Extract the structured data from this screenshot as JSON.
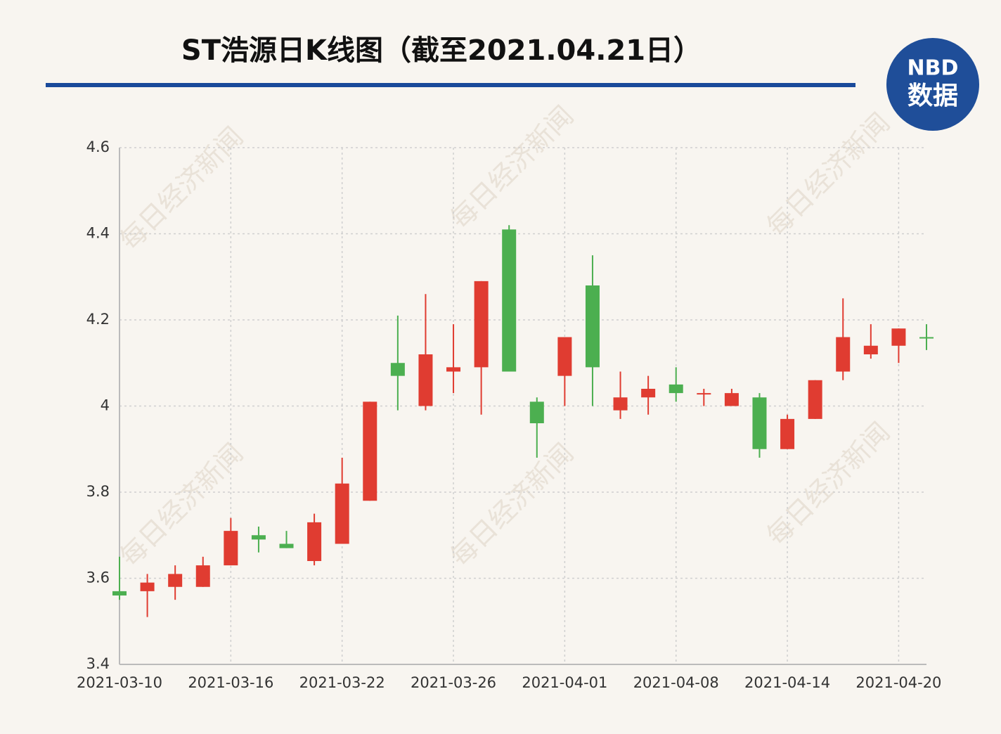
{
  "chart_data": {
    "type": "candlestick",
    "title": "ST浩源日K线图（截至2021.04.21日）",
    "logo": [
      "NBD",
      "数据"
    ],
    "watermark": "每日经济新闻",
    "categories": [
      "2021-03-10",
      null,
      null,
      null,
      "2021-03-16",
      null,
      null,
      null,
      "2021-03-22",
      null,
      null,
      null,
      "2021-03-26",
      null,
      null,
      null,
      "2021-04-01",
      null,
      null,
      null,
      "2021-04-08",
      null,
      null,
      null,
      "2021-04-14",
      null,
      null,
      null,
      "2021-04-20",
      null
    ],
    "open": [
      3.57,
      3.57,
      3.58,
      3.58,
      3.63,
      3.7,
      3.68,
      3.64,
      3.68,
      3.78,
      4.1,
      4.0,
      4.08,
      4.09,
      4.41,
      4.01,
      4.07,
      4.28,
      3.99,
      4.02,
      4.05,
      4.03,
      4.0,
      4.02,
      3.9,
      3.97,
      4.08,
      4.12,
      4.14,
      4.16
    ],
    "high": [
      3.65,
      3.61,
      3.63,
      3.65,
      3.74,
      3.72,
      3.71,
      3.75,
      3.88,
      4.01,
      4.21,
      4.26,
      4.19,
      4.29,
      4.42,
      4.02,
      4.16,
      4.35,
      4.08,
      4.07,
      4.09,
      4.04,
      4.04,
      4.03,
      3.98,
      4.06,
      4.25,
      4.19,
      4.18,
      4.19
    ],
    "low": [
      3.55,
      3.51,
      3.55,
      3.58,
      3.63,
      3.66,
      3.67,
      3.63,
      3.68,
      3.78,
      3.99,
      3.99,
      4.03,
      3.98,
      4.08,
      3.88,
      4.0,
      4.0,
      3.97,
      3.98,
      4.01,
      4.0,
      4.0,
      3.88,
      3.9,
      3.97,
      4.06,
      4.11,
      4.1,
      4.13
    ],
    "close": [
      3.56,
      3.59,
      3.61,
      3.63,
      3.71,
      3.69,
      3.67,
      3.73,
      3.82,
      4.01,
      4.07,
      4.12,
      4.09,
      4.29,
      4.08,
      3.96,
      4.16,
      4.09,
      4.02,
      4.04,
      4.03,
      4.03,
      4.03,
      3.9,
      3.97,
      4.06,
      4.16,
      4.14,
      4.18,
      4.16
    ],
    "colors": [
      "#4caf50",
      "#e03c31",
      "#e03c31",
      "#e03c31",
      "#e03c31",
      "#4caf50",
      "#4caf50",
      "#e03c31",
      "#e03c31",
      "#e03c31",
      "#4caf50",
      "#e03c31",
      "#e03c31",
      "#e03c31",
      "#4caf50",
      "#4caf50",
      "#e03c31",
      "#4caf50",
      "#e03c31",
      "#e03c31",
      "#4caf50",
      "#e03c31",
      "#e03c31",
      "#4caf50",
      "#e03c31",
      "#e03c31",
      "#e03c31",
      "#e03c31",
      "#e03c31",
      "#4caf50"
    ],
    "ylim": [
      3.4,
      4.6
    ],
    "yticks": [
      3.4,
      3.6,
      3.8,
      4,
      4.2,
      4.4,
      4.6
    ],
    "grid": true
  }
}
